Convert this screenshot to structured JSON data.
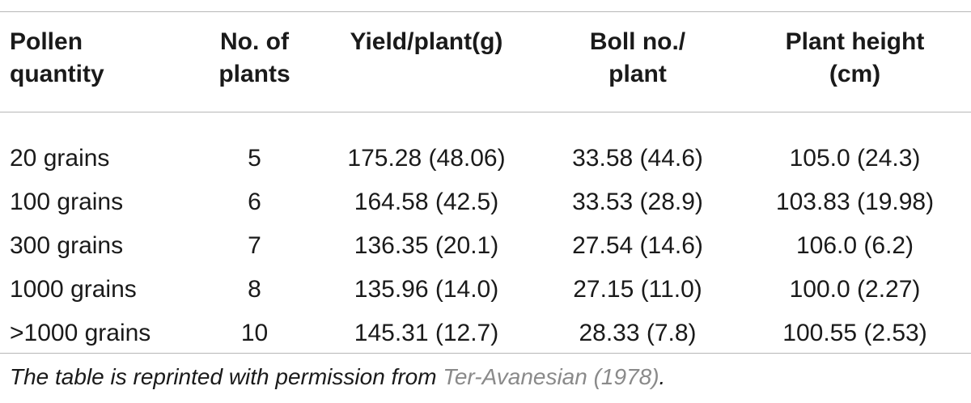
{
  "table": {
    "headers": [
      {
        "line1": "Pollen",
        "line2": "quantity"
      },
      {
        "line1": "No. of",
        "line2": "plants"
      },
      {
        "line1": "Yield/plant(g)",
        "line2": ""
      },
      {
        "line1": "Boll no./",
        "line2": "plant"
      },
      {
        "line1": "Plant height",
        "line2": "(cm)"
      }
    ],
    "rows": [
      {
        "pollen": "20 grains",
        "plants": "5",
        "yield": "175.28 (48.06)",
        "boll": "33.58 (44.6)",
        "height": "105.0 (24.3)"
      },
      {
        "pollen": "100 grains",
        "plants": "6",
        "yield": "164.58 (42.5)",
        "boll": "33.53 (28.9)",
        "height": "103.83 (19.98)"
      },
      {
        "pollen": "300 grains",
        "plants": "7",
        "yield": "136.35 (20.1)",
        "boll": "27.54 (14.6)",
        "height": "106.0 (6.2)"
      },
      {
        "pollen": "1000 grains",
        "plants": "8",
        "yield": "135.96 (14.0)",
        "boll": "27.15 (11.0)",
        "height": "100.0 (2.27)"
      },
      {
        "pollen": ">1000 grains",
        "plants": "10",
        "yield": "145.31 (12.7)",
        "boll": "28.33 (7.8)",
        "height": "100.55 (2.53)"
      }
    ]
  },
  "footnote": {
    "prefix": "The table is reprinted with permission from ",
    "reference": "Ter-Avanesian (1978)",
    "suffix": "."
  },
  "colors": {
    "text": "#1a1a1a",
    "rule": "#b7b7b7",
    "reference_link": "#8a8a8a"
  }
}
